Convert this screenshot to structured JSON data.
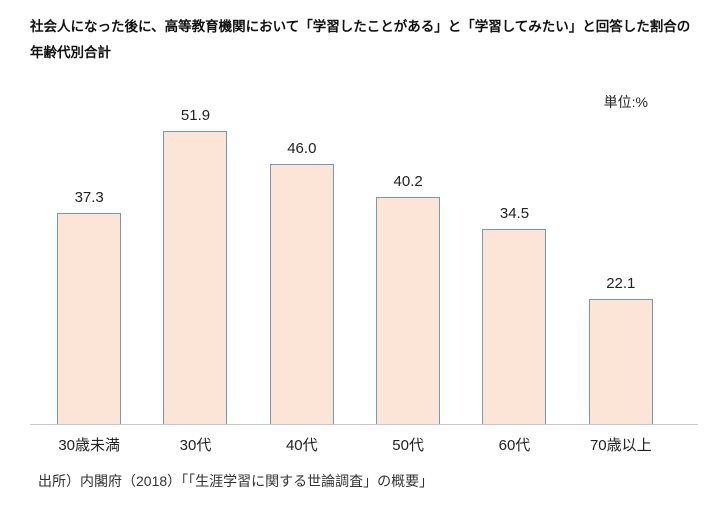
{
  "title": {
    "line1": "社会人になった後に、高等教育機関において「学習したことがある」と「学習してみたい」と回答した割合の",
    "line2": "年齢代別合計"
  },
  "unit_label": "単位:%",
  "source": "出所）内閣府（2018）「「生涯学習に関する世論調査」の概要」",
  "chart_data": {
    "type": "bar",
    "title": "社会人になった後に、高等教育機関において「学習したことがある」と「学習してみたい」と回答した割合の年齢代別合計",
    "categories": [
      "30歳未満",
      "30代",
      "40代",
      "50代",
      "60代",
      "70歳以上"
    ],
    "values": [
      37.3,
      51.9,
      46.0,
      40.2,
      34.5,
      22.1
    ],
    "unit": "%",
    "ylim": [
      0,
      60
    ],
    "grid": false,
    "legend": false,
    "value_labels": true,
    "bar_fill": "#fce5d6",
    "bar_border": "#6d9bc0",
    "axis_line_color": "#c9c9c9"
  }
}
